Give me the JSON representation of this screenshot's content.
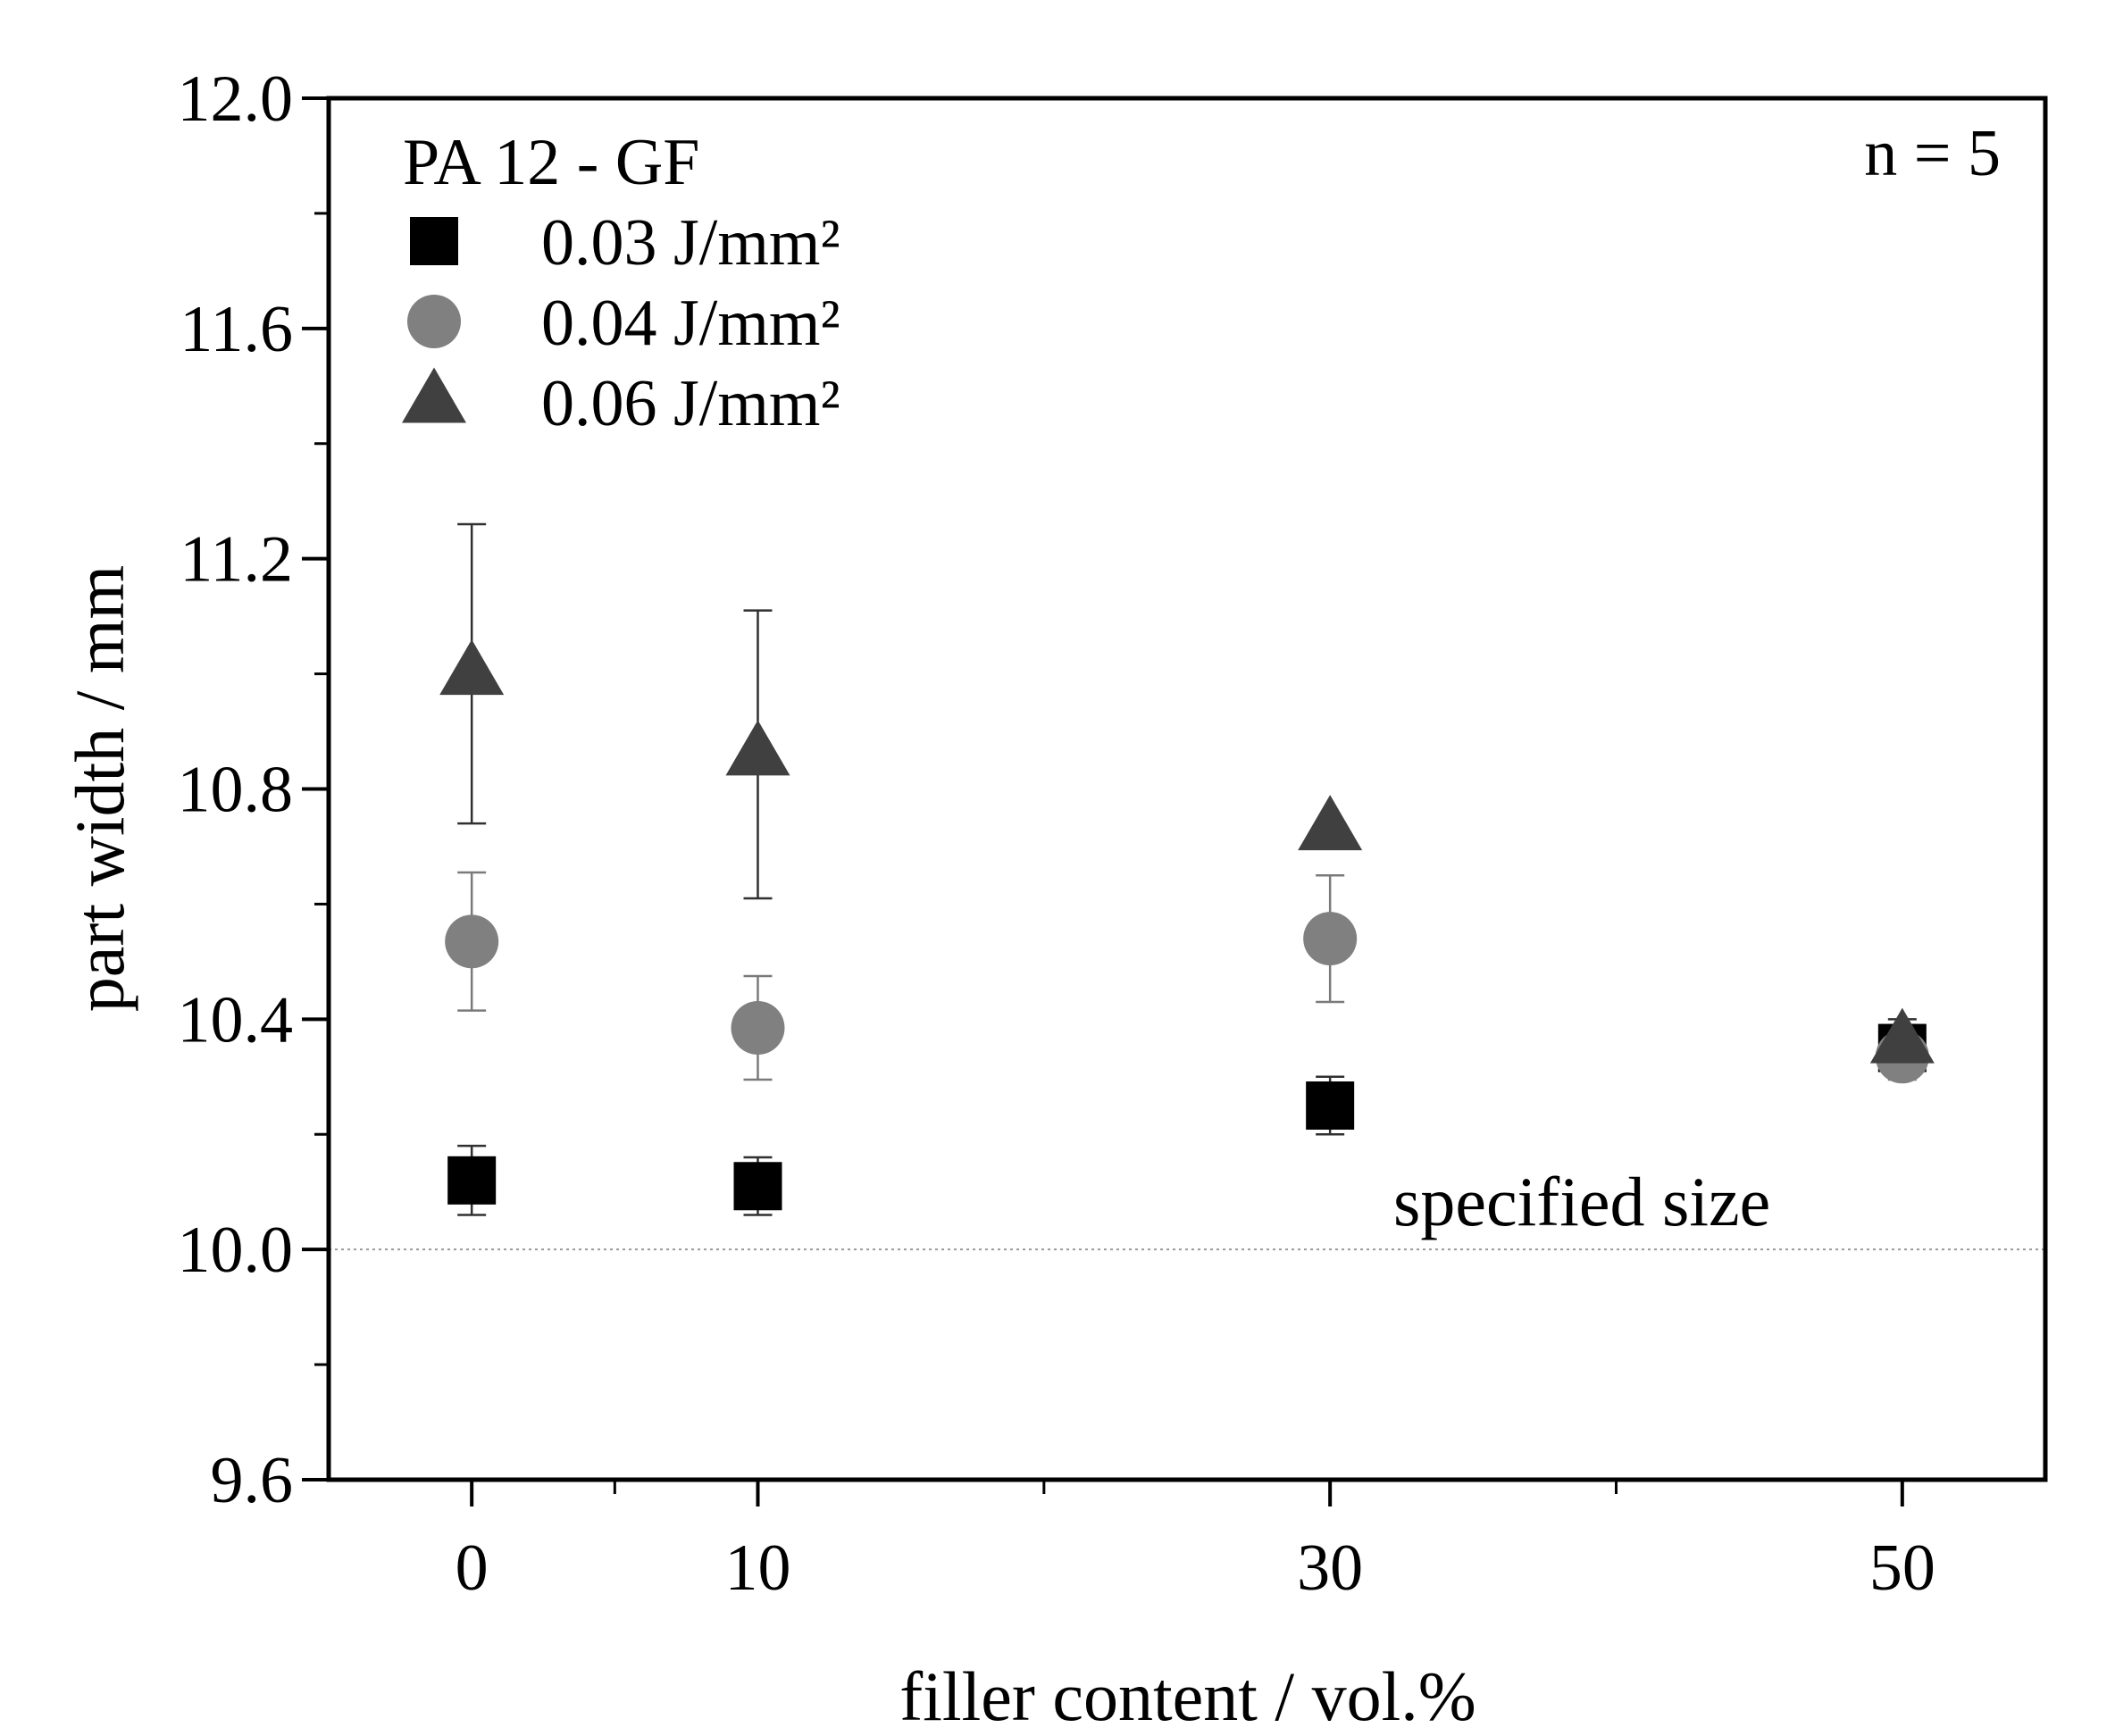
{
  "chart_data": {
    "type": "scatter",
    "title": "",
    "xlabel": "filler content / vol.%",
    "ylabel": "part width / mm",
    "xlim": [
      -5,
      55
    ],
    "ylim": [
      9.6,
      12.0
    ],
    "xticks": [
      0,
      10,
      30,
      50
    ],
    "xtick_labels": [
      "0",
      "10",
      "30",
      "50"
    ],
    "xminor_ticks": [
      5,
      20,
      40
    ],
    "yticks": [
      9.6,
      10.0,
      10.4,
      10.8,
      11.2,
      11.6,
      12.0
    ],
    "ytick_labels": [
      "9.6",
      "10.0",
      "10.4",
      "10.8",
      "11.2",
      "11.6",
      "12.0"
    ],
    "yminor_ticks": [
      9.8,
      10.2,
      10.6,
      11.0,
      11.4,
      11.8
    ],
    "grid": false,
    "legend_title": "PA 12 - GF",
    "legend_position": "top-left",
    "annotation_n": "n = 5",
    "reference_line": {
      "y": 10.0,
      "label": "specified size",
      "style": "dotted"
    },
    "series": [
      {
        "name": "0.03  J/mm²",
        "marker": "square",
        "color": "#000000",
        "x": [
          0,
          10,
          30,
          50
        ],
        "y": [
          10.12,
          10.11,
          10.25,
          10.35
        ],
        "err": [
          0.06,
          0.05,
          0.05,
          0.05
        ]
      },
      {
        "name": "0.04  J/mm²",
        "marker": "circle",
        "color": "#808080",
        "x": [
          0,
          10,
          30,
          50
        ],
        "y": [
          10.535,
          10.385,
          10.54,
          10.335
        ],
        "err": [
          0.12,
          0.09,
          0.11,
          0.04
        ]
      },
      {
        "name": "0.06  J/mm²",
        "marker": "triangle",
        "color": "#404040",
        "x": [
          0,
          10,
          30,
          50
        ],
        "y": [
          11.0,
          10.86,
          10.73,
          10.36
        ],
        "err": [
          0.26,
          0.25,
          0.0,
          0.03
        ]
      }
    ]
  }
}
